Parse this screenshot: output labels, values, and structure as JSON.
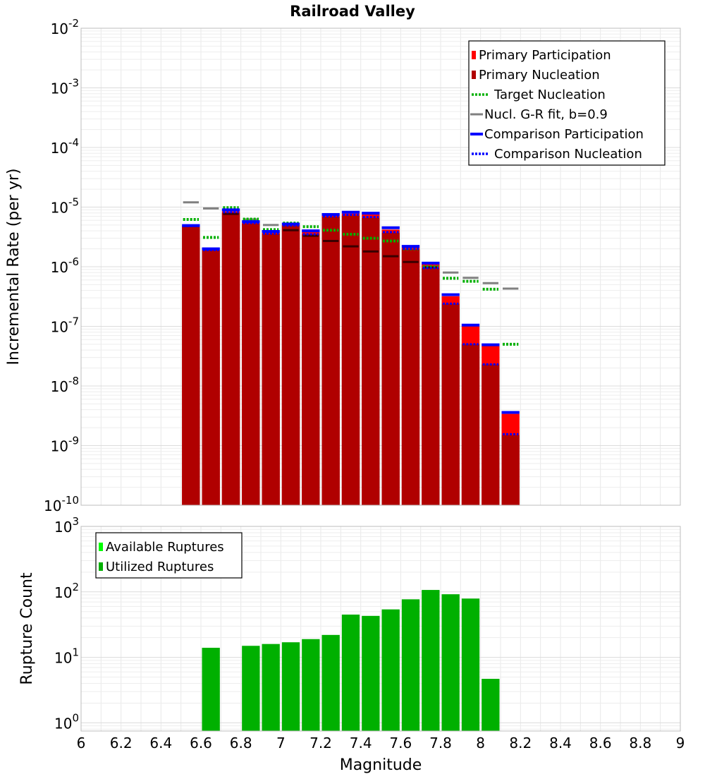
{
  "title": "Railroad Valley",
  "chart_data": [
    {
      "type": "bar",
      "title": "Railroad Valley",
      "xlabel": "Magnitude",
      "ylabel": "Incremental Rate (per yr)",
      "yscale": "log",
      "ylim": [
        1e-10,
        0.01
      ],
      "xlim": [
        6,
        9
      ],
      "grid": true,
      "legend_position": "top-right",
      "y_tick_labels": [
        "10^-10",
        "10^-9",
        "10^-8",
        "10^-7",
        "10^-6",
        "10^-5",
        "10^-4",
        "10^-3",
        "10^-2"
      ],
      "legend": [
        {
          "label": "Primary Participation",
          "color": "#ff0000",
          "style": "bar"
        },
        {
          "label": "Primary Nucleation",
          "color": "#b00000",
          "style": "bar"
        },
        {
          "label": "Target Nucleation",
          "color": "#00b000",
          "style": "dotted"
        },
        {
          "label": "Nucl. G-R fit, b=0.9",
          "color": "#808080",
          "style": "solid"
        },
        {
          "label": "Comparison Participation",
          "color": "#0000ff",
          "style": "thick"
        },
        {
          "label": "Comparison Nucleation",
          "color": "#0000ff",
          "style": "dotted"
        }
      ],
      "x": [
        6.55,
        6.65,
        6.75,
        6.85,
        6.95,
        7.05,
        7.15,
        7.25,
        7.35,
        7.45,
        7.55,
        7.65,
        7.75,
        7.85,
        7.95,
        8.05,
        8.15
      ],
      "series": [
        {
          "name": "Primary Participation",
          "values": [
            4.8e-06,
            1.9e-06,
            8.5e-06,
            5.5e-06,
            3.8e-06,
            5e-06,
            3.8e-06,
            7.2e-06,
            7.8e-06,
            7.5e-06,
            4.2e-06,
            2.1e-06,
            1.1e-06,
            3.2e-07,
            1e-07,
            4.7e-08,
            3.4e-09
          ]
        },
        {
          "name": "Primary Nucleation",
          "values": [
            4.8e-06,
            1.9e-06,
            8e-06,
            5.3e-06,
            3.6e-06,
            4.9e-06,
            3.5e-06,
            6.9e-06,
            7.2e-06,
            6.6e-06,
            3.7e-06,
            1.95e-06,
            9.5e-07,
            2.4e-07,
            5e-08,
            2.3e-08,
            1.5e-09
          ]
        },
        {
          "name": "Target Nucleation",
          "values": [
            6.2e-06,
            3.1e-06,
            9.8e-06,
            6.3e-06,
            4.2e-06,
            5.4e-06,
            4.7e-06,
            4.1e-06,
            3.5e-06,
            3e-06,
            2.7e-06,
            2e-06,
            1e-06,
            6.4e-07,
            5.7e-07,
            4.2e-07,
            5e-08
          ]
        },
        {
          "name": "Nucl. G-R fit, b=0.9",
          "values": [
            1.2e-05,
            9.5e-06,
            7.7e-06,
            6.2e-06,
            5e-06,
            4.1e-06,
            3.3e-06,
            2.7e-06,
            2.2e-06,
            1.8e-06,
            1.5e-06,
            1.2e-06,
            9.8e-07,
            8e-07,
            6.5e-07,
            5.3e-07,
            4.3e-07
          ]
        },
        {
          "name": "Comparison Participation",
          "values": [
            4.9e-06,
            2e-06,
            9e-06,
            5.7e-06,
            3.9e-06,
            5.2e-06,
            4e-06,
            7.5e-06,
            8.2e-06,
            7.9e-06,
            4.5e-06,
            2.2e-06,
            1.15e-06,
            3.4e-07,
            1.05e-07,
            4.9e-08,
            3.6e-09
          ]
        },
        {
          "name": "Comparison Nucleation",
          "values": [
            4.8e-06,
            1.9e-06,
            8.2e-06,
            5.4e-06,
            3.6e-06,
            4.9e-06,
            3.5e-06,
            7e-06,
            7.4e-06,
            6.8e-06,
            3.8e-06,
            2e-06,
            9.5e-07,
            2.4e-07,
            5e-08,
            2.3e-08,
            1.55e-09
          ]
        }
      ]
    },
    {
      "type": "bar",
      "xlabel": "Magnitude",
      "ylabel": "Rupture Count",
      "yscale": "log",
      "ylim": [
        0.75,
        1000
      ],
      "xlim": [
        6,
        9
      ],
      "grid": true,
      "legend_position": "top-left",
      "x_tick_labels": [
        "6",
        "6.2",
        "6.4",
        "6.6",
        "6.8",
        "7",
        "7.2",
        "7.4",
        "7.6",
        "7.8",
        "8",
        "8.2",
        "8.4",
        "8.6",
        "8.8",
        "9"
      ],
      "y_tick_labels": [
        "10^0",
        "10^1",
        "10^2",
        "10^3"
      ],
      "legend": [
        {
          "label": "Available Ruptures",
          "color": "#00ff00",
          "style": "bar"
        },
        {
          "label": "Utilized Ruptures",
          "color": "#00b000",
          "style": "bar"
        }
      ],
      "x": [
        6.65,
        6.85,
        6.95,
        7.05,
        7.15,
        7.25,
        7.35,
        7.45,
        7.55,
        7.65,
        7.75,
        7.85,
        7.95,
        8.05
      ],
      "series": [
        {
          "name": "Utilized Ruptures",
          "values": [
            14,
            15,
            16,
            17,
            19,
            22,
            45,
            43,
            54,
            77,
            107,
            92,
            79,
            4.7
          ]
        }
      ]
    }
  ]
}
